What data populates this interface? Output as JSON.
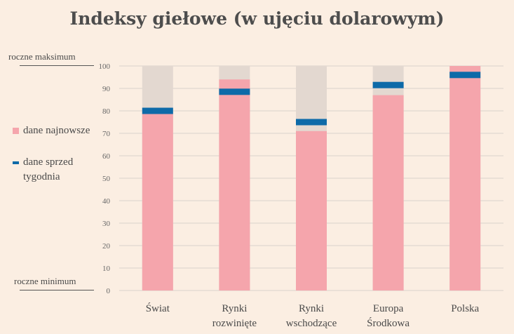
{
  "title": "Indeksy giełowe (w ujęciu dolarowym)",
  "axis": {
    "top_label": "roczne maksimum",
    "bottom_label": "roczne minimum",
    "ylim": [
      0,
      100
    ],
    "ticks": [
      "0",
      "10",
      "20",
      "30",
      "40",
      "50",
      "60",
      "70",
      "80",
      "90",
      "100"
    ]
  },
  "legend": {
    "latest": "dane najnowsze",
    "week_ago": "dane sprzed tygodnia"
  },
  "colors": {
    "latest": "#f5a5ac",
    "range": "#e3d8d0",
    "week_ago": "#0d6aa8",
    "background": "#fbeee2"
  },
  "chart_data": {
    "type": "bar",
    "categories": [
      [
        "Świat"
      ],
      [
        "Rynki",
        "rozwinięte"
      ],
      [
        "Rynki",
        "wschodzące"
      ],
      [
        "Europa",
        "Środkowa"
      ],
      [
        "Polska"
      ]
    ],
    "ylim": [
      0,
      100
    ],
    "grid": true,
    "legend_position": "left",
    "series": [
      {
        "name": "dane najnowsze",
        "values": [
          79,
          94,
          71,
          87,
          100
        ]
      },
      {
        "name": "dane sprzed tygodnia",
        "values": [
          80,
          88.5,
          75,
          91.5,
          96
        ]
      }
    ]
  }
}
